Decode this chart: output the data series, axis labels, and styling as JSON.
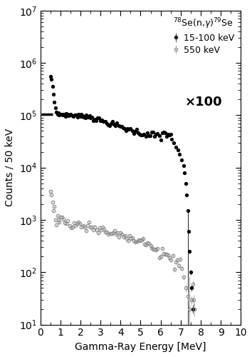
{
  "xlabel": "Gamma-Ray Energy [MeV]",
  "ylabel": "Counts / 50 keV",
  "xlim": [
    0,
    10
  ],
  "ylim_log": [
    10,
    10000000.0
  ],
  "annotation": "×100",
  "legend_title": "$^{78}$Se(n,$\\gamma$)$^{79}$Se",
  "legend_label_black": "15-100 keV",
  "legend_label_gray": "550 keV",
  "const_line_x": [
    0.05,
    0.62
  ],
  "const_line_y": [
    105000.0,
    105000.0
  ]
}
